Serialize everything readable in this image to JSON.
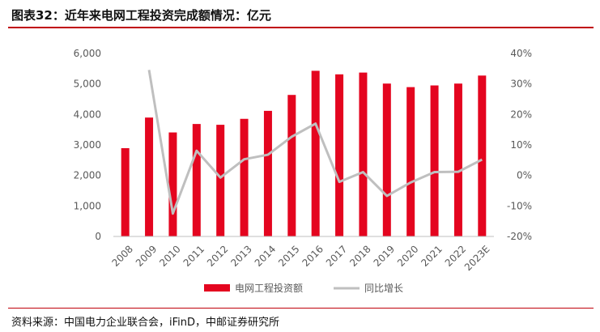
{
  "header": {
    "title": "图表32：近年来电网工程投资完成额情况：亿元"
  },
  "footer": {
    "source": "资料来源：中国电力企业联合会，iFinD，中邮证券研究所"
  },
  "colors": {
    "accent": "#c0000b",
    "bar": "#e4051f",
    "line": "#bfbfbf",
    "tick_text": "#595959"
  },
  "chart_data": {
    "type": "bar",
    "title": "",
    "categories": [
      "2008",
      "2009",
      "2010",
      "2011",
      "2012",
      "2013",
      "2014",
      "2015",
      "2016",
      "2017",
      "2018",
      "2019",
      "2020",
      "2021",
      "2022",
      "2023E"
    ],
    "series": [
      {
        "name": "电网工程投资额",
        "type": "bar",
        "axis": "left",
        "values": [
          2895,
          3898,
          3410,
          3687,
          3661,
          3856,
          4118,
          4640,
          5431,
          5315,
          5373,
          5012,
          4896,
          4951,
          5012,
          5275
        ]
      },
      {
        "name": "同比增长",
        "type": "line",
        "axis": "right",
        "values": [
          null,
          34.6,
          -12.5,
          8.1,
          -0.7,
          5.3,
          6.8,
          12.7,
          17.0,
          -2.1,
          1.1,
          -6.7,
          -2.3,
          1.1,
          1.2,
          5.2
        ]
      }
    ],
    "y_left": {
      "lim": [
        0,
        6000
      ],
      "ticks": [
        0,
        1000,
        2000,
        3000,
        4000,
        5000,
        6000
      ],
      "tick_labels": [
        "0",
        "1,000",
        "2,000",
        "3,000",
        "4,000",
        "5,000",
        "6,000"
      ]
    },
    "y_right": {
      "lim": [
        -20,
        40
      ],
      "ticks": [
        -20,
        -10,
        0,
        10,
        20,
        30,
        40
      ],
      "tick_labels": [
        "-20%",
        "-10%",
        "0%",
        "10%",
        "20%",
        "30%",
        "40%"
      ]
    },
    "grid": false,
    "legend": "bottom"
  }
}
